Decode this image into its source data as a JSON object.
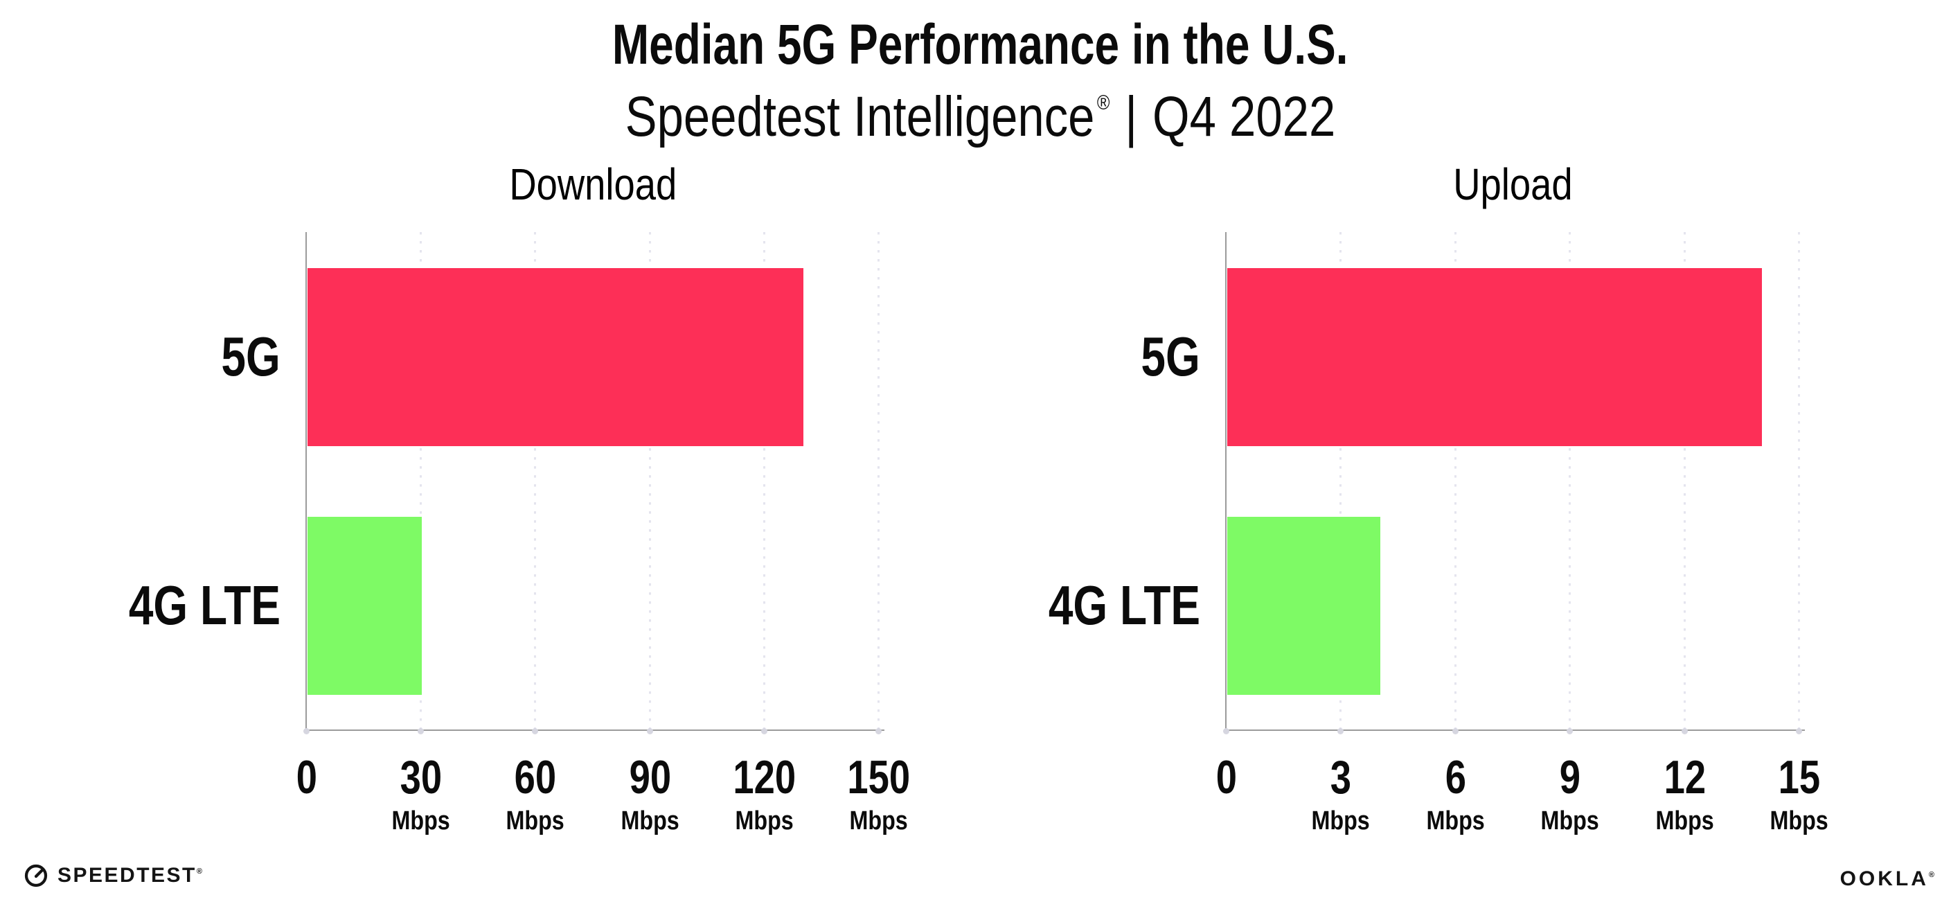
{
  "header": {
    "title": "Median 5G Performance in the U.S.",
    "subtitle": {
      "brand": "Speedtest Intelligence",
      "reg_mark": "®",
      "separator": "|",
      "period": "Q4 2022"
    }
  },
  "chart_data": [
    {
      "type": "bar",
      "orientation": "horizontal",
      "title": "Download",
      "categories": [
        "5G",
        "4G LTE"
      ],
      "values": [
        130,
        30
      ],
      "unit": "Mbps",
      "xlim": [
        0,
        150
      ],
      "xticks": [
        0,
        30,
        60,
        90,
        120,
        150
      ],
      "xtick_unit": "Mbps",
      "bar_colors": [
        "#FD2F57",
        "#7EFA65"
      ],
      "grid": "dotted-vertical",
      "legend": "none"
    },
    {
      "type": "bar",
      "orientation": "horizontal",
      "title": "Upload",
      "categories": [
        "5G",
        "4G LTE"
      ],
      "values": [
        14,
        4
      ],
      "unit": "Mbps",
      "xlim": [
        0,
        15
      ],
      "xticks": [
        0,
        3,
        6,
        9,
        12,
        15
      ],
      "xtick_unit": "Mbps",
      "bar_colors": [
        "#FD2F57",
        "#7EFA65"
      ],
      "grid": "dotted-vertical",
      "legend": "none"
    }
  ],
  "footer": {
    "speedtest": {
      "label": "SPEEDTEST",
      "mark": "®",
      "icon": "speedtest-gauge-icon"
    },
    "ookla": {
      "label": "OOKLA",
      "mark": "®"
    }
  },
  "colors": {
    "bar_5g": "#FD2F57",
    "bar_4g_lte": "#7EFA65",
    "axis": "#9B9B9B",
    "gridline": "#E4E4EE",
    "tick_dot": "#D6D6E0",
    "text": "#0B0B0B"
  }
}
